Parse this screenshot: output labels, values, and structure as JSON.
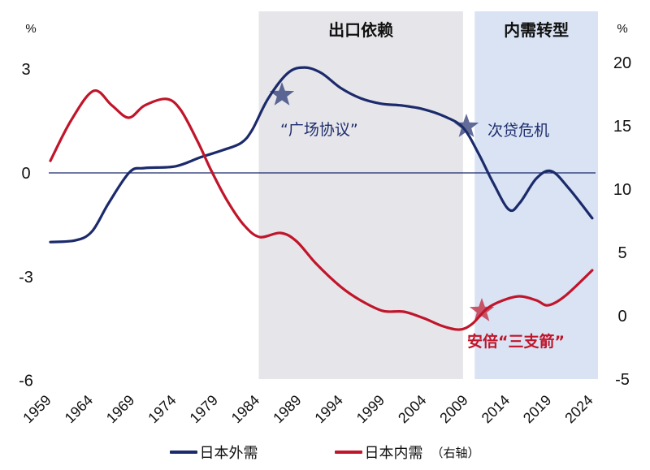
{
  "chart_data": {
    "type": "line",
    "title": "",
    "xlabel": "",
    "ylabel_left": "%",
    "ylabel_right": "%",
    "x_ticks": [
      "1959",
      "1964",
      "1969",
      "1974",
      "1979",
      "1984",
      "1989",
      "1994",
      "1999",
      "2004",
      "2009",
      "2014",
      "2019",
      "2024"
    ],
    "y_left": {
      "ticks": [
        "3",
        "0",
        "-3",
        "-6"
      ],
      "range": [
        -6,
        3
      ]
    },
    "y_right": {
      "ticks": [
        "20",
        "15",
        "10",
        "5",
        "0",
        "-5"
      ],
      "range": [
        -5,
        20
      ]
    },
    "grid": false,
    "zero_line_left": true,
    "legend_position": "bottom",
    "regions": [
      {
        "label": "出口依赖",
        "x_start": 1984,
        "x_end": 2008.5,
        "color": "#e6e6ea"
      },
      {
        "label": "内需转型",
        "x_start": 2009.9,
        "x_end": 2026,
        "color": "#d9e3f3"
      }
    ],
    "annotations": [
      {
        "text": "“广场协议”",
        "x": 1987,
        "series": "日本外需",
        "color": "#1f2e6e",
        "marker": "star"
      },
      {
        "text": "次贷危机",
        "x": 2010,
        "series": "日本外需",
        "color": "#1f2e6e",
        "marker": "star"
      },
      {
        "text": "安倍“三支箭”",
        "x": 2012.5,
        "series": "日本内需",
        "color": "#c0152a",
        "marker": "star"
      }
    ],
    "series": [
      {
        "name": "日本外需",
        "axis": "left",
        "color": "#1b2a6b",
        "x": [
          1959,
          1962,
          1964,
          1966,
          1968.5,
          1970.3,
          1974,
          1977,
          1979.7,
          1981.9,
          1983.2,
          1985.1,
          1987.5,
          1989.5,
          1991.5,
          1993.8,
          1996.2,
          1998.7,
          2001.1,
          2003.6,
          2006.2,
          2008.5,
          2010.4,
          2012.1,
          2014,
          2015.3,
          2017.3,
          2019.1,
          2021.2,
          2024
        ],
        "values": [
          -2.0,
          -1.95,
          -1.69,
          -0.87,
          0.02,
          0.14,
          0.19,
          0.45,
          0.66,
          0.87,
          1.24,
          2.14,
          2.89,
          3.05,
          2.89,
          2.46,
          2.16,
          2.0,
          1.95,
          1.85,
          1.64,
          1.31,
          0.54,
          -0.28,
          -1.06,
          -0.87,
          -0.16,
          0.05,
          -0.45,
          -1.31
        ]
      },
      {
        "name": "日本内需（右轴）",
        "axis": "right",
        "color": "#c0152a",
        "x": [
          1959,
          1961.5,
          1964.2,
          1966.4,
          1968.4,
          1970.3,
          1972.9,
          1974.6,
          1976.7,
          1978.3,
          1980.2,
          1982.2,
          1984.1,
          1986.6,
          1988.5,
          1990.9,
          1993.8,
          1996.2,
          1998.9,
          2001.4,
          2003.8,
          2006.1,
          2008.1,
          2009.6,
          2011.4,
          2013.3,
          2015.3,
          2017.3,
          2018.7,
          2020.7,
          2024
        ],
        "values": [
          12.24,
          15.45,
          17.76,
          16.6,
          15.64,
          16.6,
          17.12,
          16.28,
          13.72,
          11.47,
          9.1,
          7.18,
          6.22,
          6.54,
          5.9,
          4.1,
          2.31,
          1.22,
          0.38,
          0.32,
          -0.19,
          -0.83,
          -1.09,
          -0.64,
          0.58,
          1.22,
          1.54,
          1.22,
          0.83,
          1.54,
          3.59
        ]
      }
    ]
  },
  "axes": {
    "left_unit": "%",
    "right_unit": "%"
  },
  "legend": {
    "items": [
      {
        "label": "日本外需",
        "color": "#1b2a6b",
        "note": ""
      },
      {
        "label": "日本内需",
        "color": "#c0152a",
        "note": "（右轴）"
      }
    ]
  }
}
